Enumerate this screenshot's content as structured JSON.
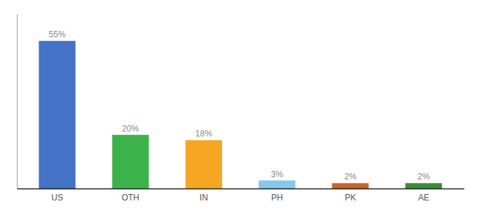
{
  "chart_data": {
    "type": "bar",
    "categories": [
      "US",
      "OTH",
      "IN",
      "PH",
      "PK",
      "AE"
    ],
    "values": [
      55,
      20,
      18,
      3,
      2,
      2
    ],
    "value_labels": [
      "55%",
      "20%",
      "18%",
      "3%",
      "2%",
      "2%"
    ],
    "colors": [
      "#4472c4",
      "#3cb34a",
      "#f5a623",
      "#85c8ea",
      "#c86428",
      "#3a8c3a"
    ],
    "ylim": [
      0,
      65
    ],
    "data_labels": true,
    "tick_labels": "x",
    "grid": false
  }
}
